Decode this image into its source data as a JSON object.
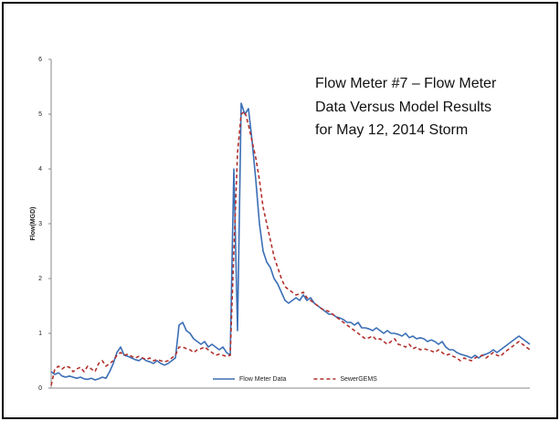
{
  "chart_data": {
    "type": "line",
    "title": "Flow Meter #7 – Flow Meter Data Versus Model Results for May 12, 2014 Storm",
    "y_label": "Flow(MGD)",
    "ylim": [
      0,
      6
    ],
    "yticks": [
      0,
      1,
      2,
      3,
      4,
      5,
      6
    ],
    "legend": "bottom",
    "series": [
      {
        "name": "Flow Meter Data",
        "color": "#3b6fb6",
        "dash": false,
        "values": [
          0.3,
          0.25,
          0.28,
          0.22,
          0.2,
          0.22,
          0.2,
          0.18,
          0.2,
          0.17,
          0.16,
          0.18,
          0.15,
          0.17,
          0.2,
          0.18,
          0.3,
          0.45,
          0.65,
          0.75,
          0.6,
          0.58,
          0.55,
          0.52,
          0.5,
          0.55,
          0.5,
          0.48,
          0.45,
          0.5,
          0.45,
          0.42,
          0.45,
          0.5,
          0.55,
          1.15,
          1.2,
          1.05,
          1.0,
          0.9,
          0.85,
          0.8,
          0.85,
          0.75,
          0.8,
          0.75,
          0.7,
          0.75,
          0.65,
          0.6,
          4.0,
          1.05,
          5.2,
          5.0,
          5.1,
          4.5,
          3.8,
          3.0,
          2.5,
          2.3,
          2.2,
          2.0,
          1.9,
          1.75,
          1.6,
          1.55,
          1.6,
          1.65,
          1.6,
          1.7,
          1.6,
          1.65,
          1.55,
          1.5,
          1.45,
          1.4,
          1.35,
          1.35,
          1.3,
          1.28,
          1.25,
          1.2,
          1.2,
          1.15,
          1.2,
          1.1,
          1.1,
          1.08,
          1.05,
          1.1,
          1.05,
          1.0,
          1.05,
          1.0,
          1.0,
          0.98,
          0.95,
          1.0,
          0.92,
          0.95,
          0.9,
          0.92,
          0.9,
          0.85,
          0.88,
          0.85,
          0.8,
          0.85,
          0.75,
          0.7,
          0.7,
          0.65,
          0.62,
          0.6,
          0.58,
          0.55,
          0.6,
          0.55,
          0.6,
          0.62,
          0.65,
          0.7,
          0.65,
          0.7,
          0.75,
          0.8,
          0.85,
          0.9,
          0.95,
          0.9,
          0.85,
          0.8
        ]
      },
      {
        "name": "SewerGEMS",
        "color": "#b3302c",
        "dash": true,
        "values": [
          0.05,
          0.35,
          0.4,
          0.35,
          0.4,
          0.38,
          0.3,
          0.35,
          0.38,
          0.3,
          0.4,
          0.35,
          0.3,
          0.45,
          0.5,
          0.4,
          0.45,
          0.5,
          0.6,
          0.65,
          0.6,
          0.62,
          0.58,
          0.55,
          0.58,
          0.55,
          0.52,
          0.55,
          0.5,
          0.52,
          0.5,
          0.48,
          0.5,
          0.55,
          0.6,
          0.75,
          0.75,
          0.72,
          0.7,
          0.65,
          0.7,
          0.72,
          0.75,
          0.7,
          0.65,
          0.6,
          0.62,
          0.6,
          0.58,
          0.6,
          2.5,
          4.3,
          5.0,
          5.05,
          4.8,
          4.5,
          4.2,
          3.8,
          3.3,
          3.0,
          2.7,
          2.4,
          2.2,
          2.0,
          1.85,
          1.8,
          1.75,
          1.7,
          1.72,
          1.75,
          1.65,
          1.6,
          1.55,
          1.5,
          1.45,
          1.42,
          1.4,
          1.35,
          1.3,
          1.25,
          1.2,
          1.15,
          1.1,
          1.05,
          1.0,
          0.95,
          0.9,
          0.92,
          0.95,
          0.88,
          0.9,
          0.85,
          0.8,
          0.85,
          0.9,
          0.8,
          0.78,
          0.75,
          0.8,
          0.72,
          0.75,
          0.7,
          0.72,
          0.7,
          0.68,
          0.65,
          0.7,
          0.65,
          0.6,
          0.62,
          0.58,
          0.55,
          0.5,
          0.55,
          0.52,
          0.5,
          0.55,
          0.58,
          0.6,
          0.55,
          0.6,
          0.65,
          0.6,
          0.58,
          0.65,
          0.7,
          0.75,
          0.8,
          0.85,
          0.8,
          0.75,
          0.7
        ]
      }
    ]
  }
}
